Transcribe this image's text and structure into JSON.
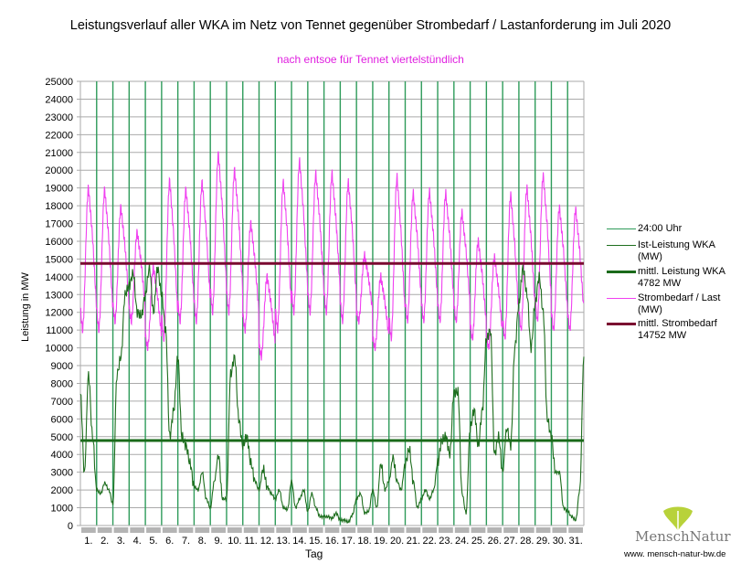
{
  "chart_data": {
    "type": "line",
    "title": "Leistungsverlauf aller WKA im Netz von Tennet gegenüber  Strombedarf / Lastanforderung im Juli 2020",
    "subtitle": "nach entsoe für Tennet viertelstündlich",
    "xlabel": "Tag",
    "ylabel": "Leistung in MW",
    "ylim": [
      0,
      25000
    ],
    "ytick_step": 1000,
    "x_categories": [
      "1.",
      "2.",
      "3.",
      "4.",
      "5.",
      "6.",
      "7.",
      "8.",
      "9.",
      "10.",
      "11.",
      "12.",
      "13.",
      "14.",
      "15.",
      "16.",
      "17.",
      "18.",
      "19.",
      "20.",
      "21.",
      "22.",
      "23.",
      "24.",
      "25.",
      "26.",
      "27.",
      "28.",
      "29.",
      "30.",
      "31."
    ],
    "grid": true,
    "legend_position": "right",
    "legend": [
      {
        "label": "24:00 Uhr",
        "color": "#2e9b5a"
      },
      {
        "label": "Ist-Leistung WKA (MW)",
        "color": "#1e6e1e"
      },
      {
        "label": "mittl. Leistung WKA 4782 MW",
        "color": "#1a6a1a"
      },
      {
        "label": "Strombedarf / Last (MW)",
        "color": "#f040f0"
      },
      {
        "label": "mittl. Strombedarf 14752 MW",
        "color": "#7a0a30"
      }
    ],
    "series": [
      {
        "name": "Ist-Leistung WKA (MW)",
        "sample_hours": [
          0,
          6,
          12,
          18
        ],
        "values": [
          [
            7400,
            3000,
            8500,
            5000
          ],
          [
            2000,
            1800,
            2400,
            2000
          ],
          [
            1200,
            8500,
            9500,
            13000
          ],
          [
            13500,
            14200,
            12000,
            11800
          ],
          [
            13000,
            14500,
            12000,
            14500
          ],
          [
            13000,
            11000,
            5000,
            6500
          ],
          [
            9500,
            5000,
            4500,
            3500
          ],
          [
            2200,
            2000,
            3000,
            1500
          ],
          [
            1000,
            2500,
            4000,
            1500
          ],
          [
            1500,
            8500,
            9500,
            6000
          ],
          [
            4500,
            5000,
            3500,
            2500
          ],
          [
            2000,
            3200,
            2200,
            1800
          ],
          [
            1500,
            2000,
            1000,
            900
          ],
          [
            2500,
            1000,
            1500,
            2000
          ],
          [
            800,
            1800,
            1000,
            500
          ],
          [
            500,
            500,
            400,
            700
          ],
          [
            300,
            300,
            200,
            600
          ],
          [
            1500,
            1800,
            700,
            800
          ],
          [
            2000,
            1000,
            3500,
            2000
          ],
          [
            2500,
            3800,
            2500,
            2000
          ],
          [
            3500,
            4300,
            2500,
            1000
          ],
          [
            1500,
            2000,
            1500,
            2000
          ],
          [
            3500,
            4800,
            5000,
            4000
          ],
          [
            7500,
            7500,
            1800,
            700
          ],
          [
            5500,
            6500,
            4500,
            6500
          ],
          [
            10500,
            11000,
            4000,
            5000
          ],
          [
            3000,
            5500,
            4500,
            10000
          ],
          [
            12500,
            14500,
            13000,
            10000
          ],
          [
            12500,
            14000,
            12000,
            6000
          ],
          [
            5000,
            3000,
            3000,
            1000
          ],
          [
            800,
            500,
            300,
            2000
          ]
        ],
        "end_value": 9500
      },
      {
        "name": "Strombedarf / Last (MW)",
        "daily_min": [
          11000,
          11000,
          11500,
          11500,
          10000,
          10500,
          11500,
          11500,
          12000,
          12000,
          11000,
          9500,
          11000,
          12000,
          12000,
          12000,
          11500,
          11500,
          10000,
          10500,
          11500,
          11500,
          11500,
          11500,
          10500,
          10000,
          10500,
          11000,
          11500,
          11000,
          11000
        ],
        "daily_max": [
          19000,
          18900,
          17900,
          16500,
          14500,
          19400,
          18900,
          19300,
          20900,
          20000,
          17000,
          14000,
          19300,
          20500,
          19800,
          19800,
          19300,
          15200,
          14000,
          19600,
          18700,
          18800,
          18700,
          17600,
          16000,
          15100,
          18600,
          19000,
          19700,
          17900,
          17800
        ]
      },
      {
        "name": "mittl. Leistung WKA",
        "value": 4782
      },
      {
        "name": "mittl. Strombedarf",
        "value": 14752
      }
    ]
  },
  "legend_text": {
    "l0": "24:00 Uhr",
    "l1a": "Ist-Leistung WKA",
    "l1b": "(MW)",
    "l2a": "mittl. Leistung WKA",
    "l2b": "4782 MW",
    "l3a": "Strombedarf / Last",
    "l3b": "(MW)",
    "l4a": "mittl. Strombedarf",
    "l4b": "14752 MW"
  },
  "logo": {
    "name": "MenschNatur",
    "url": "www. mensch-natur-bw.de"
  }
}
